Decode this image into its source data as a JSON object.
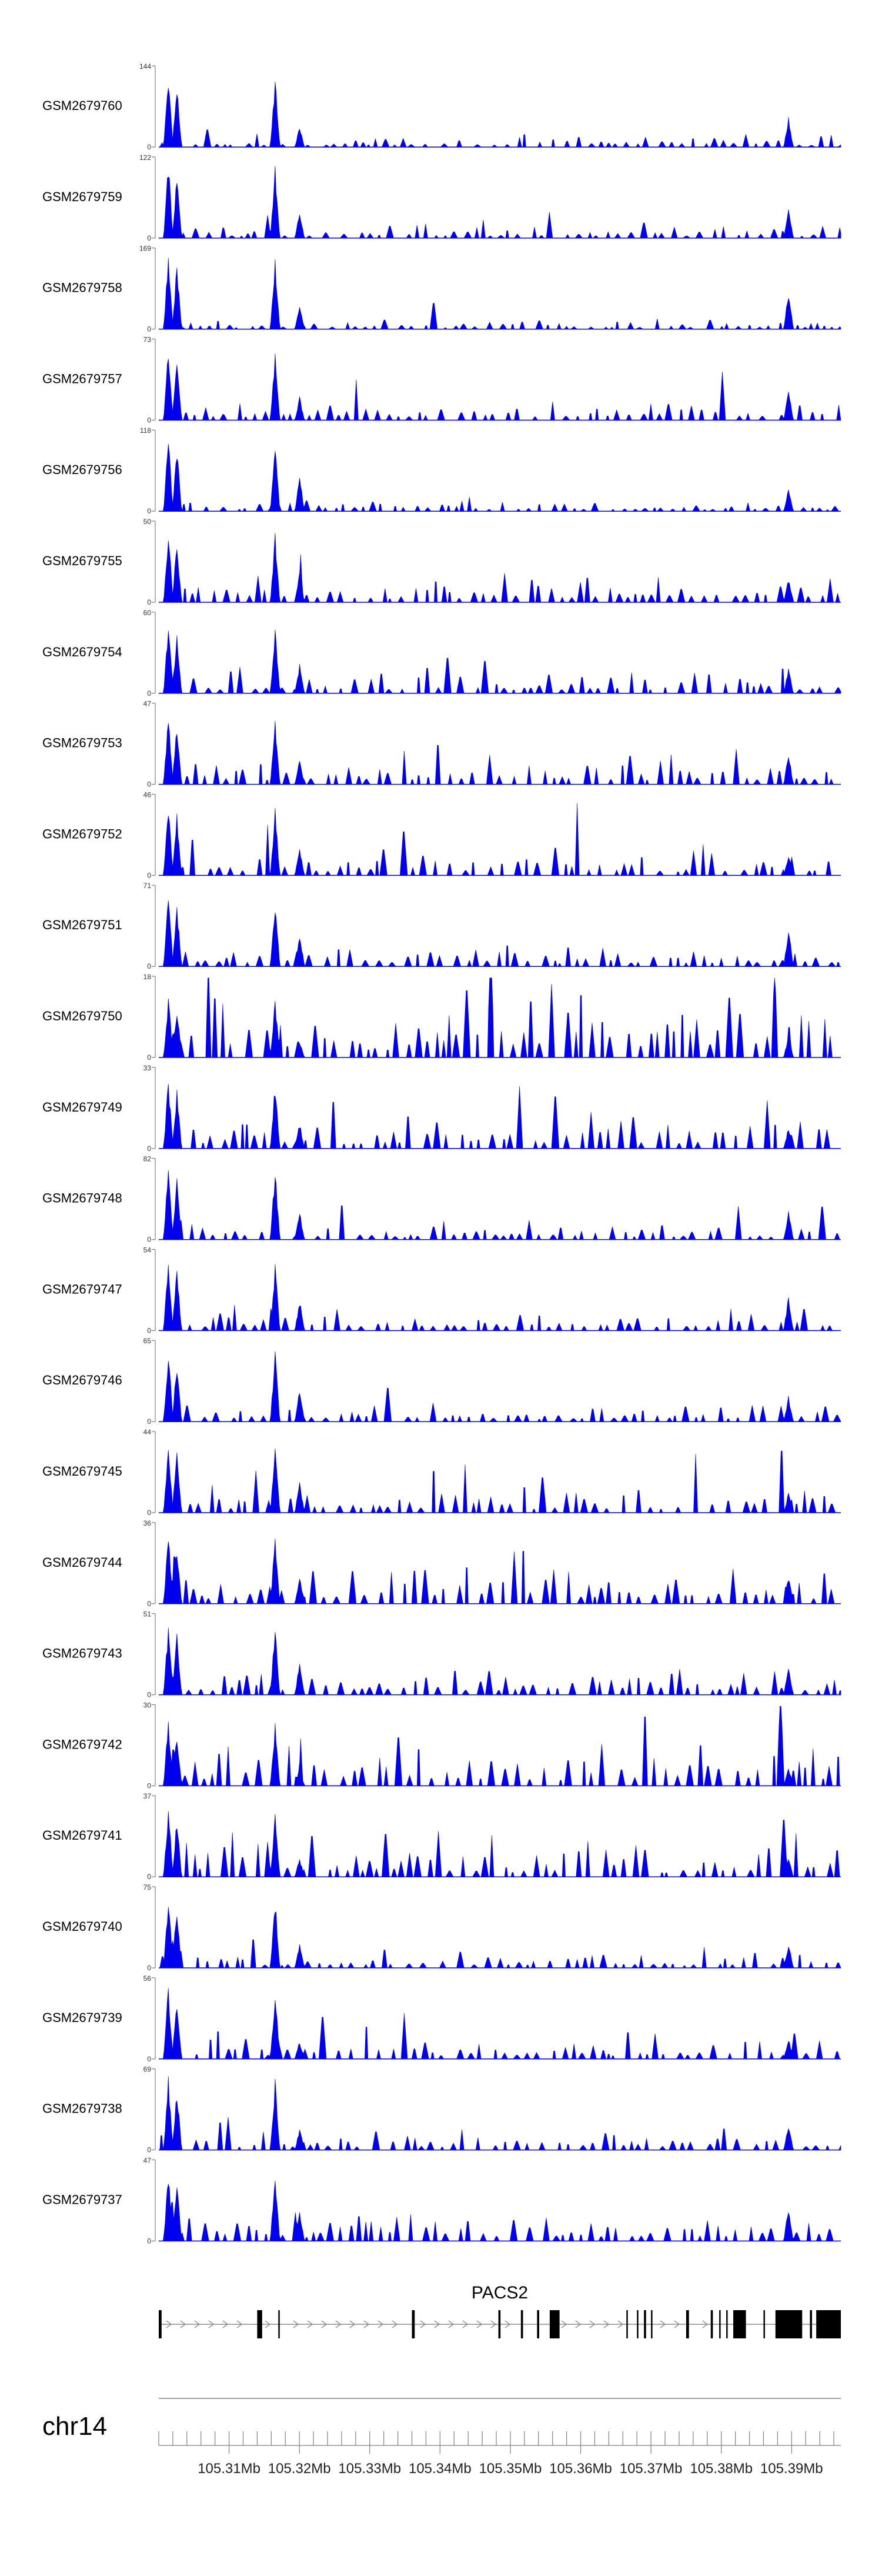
{
  "chart_data": {
    "type": "area",
    "track_color": "#0000ee",
    "gene_color": "#000000",
    "axis_color": "#808080",
    "title": "",
    "tracks": [
      {
        "name": "GSM2679760",
        "ymax": "144",
        "ymin": "0",
        "max": 144,
        "seed": 60,
        "bg": 0.1,
        "spread": 0.06
      },
      {
        "name": "GSM2679759",
        "ymax": "122",
        "ymin": "0",
        "max": 122,
        "seed": 59,
        "bg": 0.12,
        "spread": 0.07
      },
      {
        "name": "GSM2679758",
        "ymax": "169",
        "ymin": "0",
        "max": 169,
        "seed": 58,
        "bg": 0.1,
        "spread": 0.06
      },
      {
        "name": "GSM2679757",
        "ymax": "73",
        "ymin": "0",
        "max": 73,
        "seed": 57,
        "bg": 0.18,
        "spread": 0.1
      },
      {
        "name": "GSM2679756",
        "ymax": "118",
        "ymin": "0",
        "max": 118,
        "seed": 56,
        "bg": 0.1,
        "spread": 0.06
      },
      {
        "name": "GSM2679755",
        "ymax": "50",
        "ymin": "0",
        "max": 50,
        "seed": 55,
        "bg": 0.22,
        "spread": 0.12
      },
      {
        "name": "GSM2679754",
        "ymax": "60",
        "ymin": "0",
        "max": 60,
        "seed": 54,
        "bg": 0.2,
        "spread": 0.12
      },
      {
        "name": "GSM2679753",
        "ymax": "47",
        "ymin": "0",
        "max": 47,
        "seed": 53,
        "bg": 0.25,
        "spread": 0.14
      },
      {
        "name": "GSM2679752",
        "ymax": "46",
        "ymin": "0",
        "max": 46,
        "seed": 52,
        "bg": 0.24,
        "spread": 0.14
      },
      {
        "name": "GSM2679751",
        "ymax": "71",
        "ymin": "0",
        "max": 71,
        "seed": 51,
        "bg": 0.18,
        "spread": 0.1
      },
      {
        "name": "GSM2679750",
        "ymax": "18",
        "ymin": "0",
        "max": 18,
        "seed": 50,
        "bg": 0.55,
        "spread": 0.3
      },
      {
        "name": "GSM2679749",
        "ymax": "33",
        "ymin": "0",
        "max": 33,
        "seed": 49,
        "bg": 0.3,
        "spread": 0.16
      },
      {
        "name": "GSM2679748",
        "ymax": "82",
        "ymin": "0",
        "max": 82,
        "seed": 48,
        "bg": 0.14,
        "spread": 0.08
      },
      {
        "name": "GSM2679747",
        "ymax": "54",
        "ymin": "0",
        "max": 54,
        "seed": 47,
        "bg": 0.2,
        "spread": 0.12
      },
      {
        "name": "GSM2679746",
        "ymax": "65",
        "ymin": "0",
        "max": 65,
        "seed": 46,
        "bg": 0.18,
        "spread": 0.1
      },
      {
        "name": "GSM2679745",
        "ymax": "44",
        "ymin": "0",
        "max": 44,
        "seed": 45,
        "bg": 0.25,
        "spread": 0.14
      },
      {
        "name": "GSM2679744",
        "ymax": "36",
        "ymin": "0",
        "max": 36,
        "seed": 44,
        "bg": 0.3,
        "spread": 0.16
      },
      {
        "name": "GSM2679743",
        "ymax": "51",
        "ymin": "0",
        "max": 51,
        "seed": 43,
        "bg": 0.24,
        "spread": 0.14
      },
      {
        "name": "GSM2679742",
        "ymax": "30",
        "ymin": "0",
        "max": 30,
        "seed": 42,
        "bg": 0.38,
        "spread": 0.22
      },
      {
        "name": "GSM2679741",
        "ymax": "37",
        "ymin": "0",
        "max": 37,
        "seed": 41,
        "bg": 0.3,
        "spread": 0.18
      },
      {
        "name": "GSM2679740",
        "ymax": "75",
        "ymin": "0",
        "max": 75,
        "seed": 40,
        "bg": 0.16,
        "spread": 0.1
      },
      {
        "name": "GSM2679739",
        "ymax": "56",
        "ymin": "0",
        "max": 56,
        "seed": 39,
        "bg": 0.2,
        "spread": 0.12
      },
      {
        "name": "GSM2679738",
        "ymax": "69",
        "ymin": "0",
        "max": 69,
        "seed": 38,
        "bg": 0.18,
        "spread": 0.1
      },
      {
        "name": "GSM2679737",
        "ymax": "47",
        "ymin": "0",
        "max": 47,
        "seed": 37,
        "bg": 0.25,
        "spread": 0.14
      }
    ],
    "peaks": [
      {
        "pos": 105.3013,
        "h": 1.0
      },
      {
        "pos": 105.3026,
        "h": 0.85
      },
      {
        "pos": 105.3165,
        "h": 0.95
      },
      {
        "pos": 105.32,
        "h": 0.4
      },
      {
        "pos": 105.3895,
        "h": 0.45
      }
    ],
    "gene": {
      "name": "PACS2",
      "strand": "+",
      "start": 105.3,
      "end": 105.397,
      "exons": [
        {
          "start": 105.3,
          "end": 105.3004
        },
        {
          "start": 105.314,
          "end": 105.3147
        },
        {
          "start": 105.317,
          "end": 105.3172
        },
        {
          "start": 105.336,
          "end": 105.3364
        },
        {
          "start": 105.3483,
          "end": 105.3486
        },
        {
          "start": 105.3515,
          "end": 105.3518
        },
        {
          "start": 105.3538,
          "end": 105.3541
        },
        {
          "start": 105.3556,
          "end": 105.357
        },
        {
          "start": 105.3665,
          "end": 105.3667
        },
        {
          "start": 105.368,
          "end": 105.3682
        },
        {
          "start": 105.369,
          "end": 105.3693
        },
        {
          "start": 105.37,
          "end": 105.3702
        },
        {
          "start": 105.375,
          "end": 105.3754
        },
        {
          "start": 105.3785,
          "end": 105.3788
        },
        {
          "start": 105.3797,
          "end": 105.3799
        },
        {
          "start": 105.3807,
          "end": 105.3809
        },
        {
          "start": 105.3817,
          "end": 105.3835
        },
        {
          "start": 105.386,
          "end": 105.3862
        },
        {
          "start": 105.3877,
          "end": 105.3915
        },
        {
          "start": 105.3926,
          "end": 105.3929
        },
        {
          "start": 105.3935,
          "end": 105.397
        }
      ]
    },
    "axis": {
      "chrom": "chr14",
      "start": 105.3,
      "end": 105.397,
      "minor_step": 0.002,
      "labels": [
        {
          "pos": 105.31,
          "text": "105.31Mb"
        },
        {
          "pos": 105.32,
          "text": "105.32Mb"
        },
        {
          "pos": 105.33,
          "text": "105.33Mb"
        },
        {
          "pos": 105.34,
          "text": "105.34Mb"
        },
        {
          "pos": 105.35,
          "text": "105.35Mb"
        },
        {
          "pos": 105.36,
          "text": "105.36Mb"
        },
        {
          "pos": 105.37,
          "text": "105.37Mb"
        },
        {
          "pos": 105.38,
          "text": "105.38Mb"
        },
        {
          "pos": 105.39,
          "text": "105.39Mb"
        }
      ]
    }
  }
}
